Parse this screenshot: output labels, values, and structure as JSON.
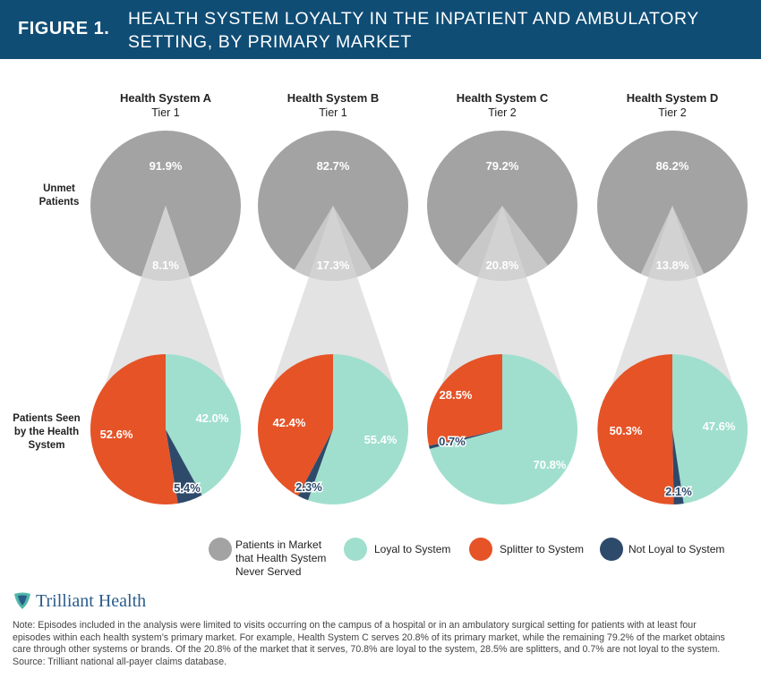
{
  "header": {
    "figure_label": "FIGURE 1.",
    "title_line1": "HEALTH SYSTEM LOYALTY IN THE INPATIENT AND AMBULATORY",
    "title_line2": "SETTING, BY PRIMARY MARKET"
  },
  "row_labels": {
    "unmet_line1": "Unmet",
    "unmet_line2": "Patients",
    "seen_line1": "Patients Seen",
    "seen_line2": "by the Health",
    "seen_line3": "System"
  },
  "chart_data": {
    "type": "pie",
    "title": "Health System Loyalty in the Inpatient and Ambulatory Setting, by Primary Market",
    "systems": [
      {
        "name": "Health System A",
        "tier": "Tier 1",
        "unmet": 91.9,
        "served": 8.1,
        "unmet_label": "91.9%",
        "served_label": "8.1%",
        "loyal": 42.0,
        "not_loyal": 5.4,
        "splitter": 52.6,
        "loyal_label": "42.0%",
        "not_loyal_label": "5.4%",
        "splitter_label": "52.6%"
      },
      {
        "name": "Health System B",
        "tier": "Tier 1",
        "unmet": 82.7,
        "served": 17.3,
        "unmet_label": "82.7%",
        "served_label": "17.3%",
        "loyal": 55.4,
        "not_loyal": 2.3,
        "splitter": 42.4,
        "loyal_label": "55.4%",
        "not_loyal_label": "2.3%",
        "splitter_label": "42.4%"
      },
      {
        "name": "Health System C",
        "tier": "Tier 2",
        "unmet": 79.2,
        "served": 20.8,
        "unmet_label": "79.2%",
        "served_label": "20.8%",
        "loyal": 70.8,
        "not_loyal": 0.7,
        "splitter": 28.5,
        "loyal_label": "70.8%",
        "not_loyal_label": "0.7%",
        "splitter_label": "28.5%"
      },
      {
        "name": "Health System D",
        "tier": "Tier 2",
        "unmet": 86.2,
        "served": 13.8,
        "unmet_label": "86.2%",
        "served_label": "13.8%",
        "loyal": 47.6,
        "not_loyal": 2.1,
        "splitter": 50.3,
        "loyal_label": "47.6%",
        "not_loyal_label": "2.1%",
        "splitter_label": "50.3%"
      }
    ],
    "legend": {
      "unmet_line1": "Patients in Market",
      "unmet_line2": "that Health System",
      "unmet_line3": "Never Served",
      "loyal": "Loyal to System",
      "splitter": "Splitter to System",
      "not_loyal": "Not Loyal to System"
    },
    "colors": {
      "unmet": "#a3a3a3",
      "served": "#c8c8c8",
      "wedge": "#e3e3e3",
      "loyal": "#a0dfcd",
      "splitter": "#e55327",
      "not_loyal": "#2e4a6b"
    }
  },
  "logo": {
    "text": "Trilliant Health",
    "icon": "trilliant-logo-icon"
  },
  "note": {
    "line1": "Note: Episodes included in the analysis were limited to visits occurring on the campus of a hospital or in an ambulatory surgical setting for patients with at least four",
    "line2": "episodes within each health system’s primary market. For example, Health System C serves 20.8% of its primary market, while the remaining 79.2% of the market obtains",
    "line3": "care through other systems or brands. Of the 20.8% of the market that it serves, 70.8% are loyal to the system, 28.5% are splitters, and 0.7% are not loyal to the system.",
    "line4": "Source: Trilliant national all-payer claims database."
  }
}
